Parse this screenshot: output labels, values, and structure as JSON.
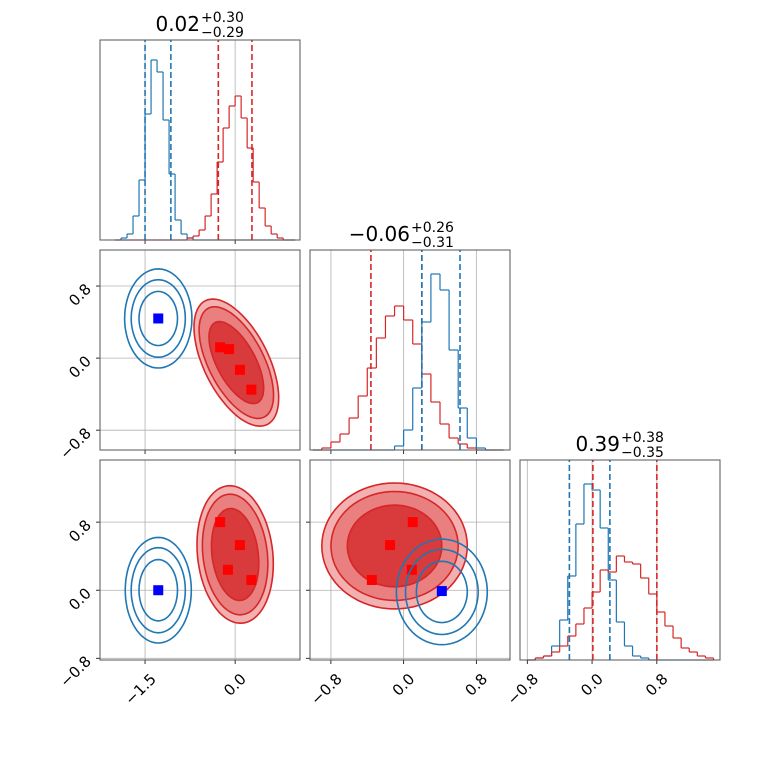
{
  "chart_data": [
    {
      "type": "histogram",
      "title": "0.02",
      "title_upper": "+0.30",
      "title_lower": "−0.29",
      "bins": [
        -2,
        -1.9,
        -1.8,
        -1.7,
        -1.6,
        -1.5,
        -1.4,
        -1.3,
        -1.2,
        -1.1,
        -1,
        -0.9,
        -0.8,
        -0.7,
        -0.6,
        -0.5,
        -0.4,
        -0.3,
        -0.2,
        -0.1,
        0,
        0.1,
        0.2,
        0.3,
        0.4,
        0.5,
        0.6,
        0.7,
        0.8,
        0.9,
        1
      ],
      "series": [
        {
          "color": "#1f77b4",
          "values": [
            0,
            1,
            3,
            12,
            30,
            63,
            90,
            84,
            60,
            33,
            10,
            3,
            1,
            0,
            0,
            0,
            0,
            0,
            0,
            0,
            0,
            0,
            0,
            0,
            0,
            0,
            0,
            0,
            0,
            0
          ],
          "quantiles": [
            -1.5,
            -1.07
          ]
        },
        {
          "color": "#d62728",
          "values": [
            0,
            0,
            0,
            0,
            0,
            0,
            0,
            0,
            0,
            0,
            0,
            0,
            1,
            2,
            5,
            12,
            23,
            39,
            56,
            67,
            72,
            61,
            46,
            29,
            16,
            7,
            3,
            1,
            0,
            0
          ],
          "quantiles": [
            -0.28,
            0.28
          ]
        }
      ],
      "xlim": [
        -2.25,
        1.08
      ],
      "xticks": [
        -1.5,
        0
      ],
      "xtick_labels": false,
      "ylim": [
        0,
        100
      ],
      "yticks": [],
      "ytick_labels": false,
      "grid": true
    },
    {
      "type": "contour",
      "series": [
        {
          "color": "#1f77b4",
          "point_color": "#0000ff",
          "contours": [
            {
              "x": -1.28,
              "y": 0.44,
              "rx": 0.56,
              "ry": 0.55,
              "angle": 0
            },
            {
              "x": -1.28,
              "y": 0.44,
              "rx": 0.45,
              "ry": 0.43,
              "angle": 0
            },
            {
              "x": -1.28,
              "y": 0.44,
              "rx": 0.32,
              "ry": 0.3,
              "angle": 0
            }
          ],
          "points": {
            "x": [
              -1.28
            ],
            "y": [
              0.44
            ]
          }
        },
        {
          "color": "#d62728",
          "point_color": "#ff0000",
          "contours": [
            {
              "x": 0.02,
              "y": -0.05,
              "rx": 0.88,
              "ry": 0.47,
              "angle": -45,
              "fill": "#f3b0b0"
            },
            {
              "x": 0.02,
              "y": -0.05,
              "rx": 0.78,
              "ry": 0.4,
              "angle": -45,
              "fill": "#ea7f80"
            },
            {
              "x": 0.02,
              "y": -0.05,
              "rx": 0.58,
              "ry": 0.28,
              "angle": -45,
              "fill": "#d93a3b"
            }
          ],
          "points": {
            "x": [
              -0.25,
              -0.1,
              0.08,
              0.27
            ],
            "y": [
              0.12,
              0.1,
              -0.13,
              -0.35
            ]
          }
        }
      ],
      "xlim": [
        -2.25,
        1.08
      ],
      "xticks": [
        -1.5,
        0
      ],
      "xtick_labels": false,
      "ylim": [
        -1.02,
        1.2
      ],
      "yticks": [
        {
          "value": -0.8,
          "label": "−0.8"
        },
        {
          "value": 0,
          "label": "0.0"
        },
        0.8
      ],
      "ytick_labels": true,
      "grid": true
    },
    {
      "type": "histogram",
      "title": "−0.06",
      "title_upper": "+0.26",
      "title_lower": "−0.31",
      "bins": [
        -1,
        -0.9,
        -0.8,
        -0.7,
        -0.6,
        -0.5,
        -0.4,
        -0.3,
        -0.2,
        -0.1,
        0,
        0.1,
        0.2,
        0.3,
        0.4,
        0.5,
        0.6,
        0.7,
        0.8,
        0.9,
        1,
        1.1
      ],
      "series": [
        {
          "color": "#d62728",
          "values": [
            0,
            1,
            4,
            8,
            16,
            27,
            41,
            56,
            67,
            72,
            65,
            53,
            38,
            24,
            13,
            6,
            3,
            1,
            0,
            0,
            0
          ],
          "quantiles": [
            -0.36,
            0.2
          ]
        },
        {
          "color": "#1f77b4",
          "values": [
            0,
            0,
            0,
            0,
            0,
            0,
            0,
            0,
            0,
            2,
            10,
            31,
            64,
            88,
            80,
            50,
            21,
            6,
            1,
            0,
            0
          ],
          "quantiles": [
            0.2,
            0.62
          ]
        }
      ],
      "xlim": [
        -1.03,
        1.17
      ],
      "xticks": [
        -0.8,
        0,
        0.8
      ],
      "xtick_labels": false,
      "ylim": [
        0,
        100
      ],
      "yticks": [],
      "ytick_labels": false,
      "grid": true
    },
    {
      "type": "contour",
      "series": [
        {
          "color": "#1f77b4",
          "point_color": "#0000ff",
          "contours": [
            {
              "x": -1.28,
              "y": 0,
              "rx": 0.55,
              "ry": 0.62,
              "angle": 0
            },
            {
              "x": -1.28,
              "y": 0,
              "rx": 0.45,
              "ry": 0.5,
              "angle": 0
            },
            {
              "x": -1.28,
              "y": 0,
              "rx": 0.32,
              "ry": 0.36,
              "angle": 0
            }
          ],
          "points": {
            "x": [
              -1.28
            ],
            "y": [
              0
            ]
          }
        },
        {
          "color": "#d62728",
          "point_color": "#ff0000",
          "contours": [
            {
              "x": 0,
              "y": 0.42,
              "rx": 0.82,
              "ry": 0.62,
              "angle": -75,
              "fill": "#f3b0b0"
            },
            {
              "x": 0,
              "y": 0.42,
              "rx": 0.72,
              "ry": 0.53,
              "angle": -75,
              "fill": "#ea7f80"
            },
            {
              "x": 0,
              "y": 0.42,
              "rx": 0.55,
              "ry": 0.38,
              "angle": -75,
              "fill": "#d93a3b"
            }
          ],
          "points": {
            "x": [
              -0.25,
              0.08,
              -0.12,
              0.27
            ],
            "y": [
              0.8,
              0.53,
              0.24,
              0.12
            ]
          }
        }
      ],
      "xlim": [
        -2.25,
        1.08
      ],
      "xticks": [
        {
          "value": -1.5,
          "label": "−1.5"
        },
        {
          "value": 0,
          "label": "0.0"
        }
      ],
      "xtick_labels": true,
      "ylim": [
        -0.82,
        1.53
      ],
      "yticks": [
        {
          "value": -0.8,
          "label": "−0.8"
        },
        {
          "value": 0,
          "label": "0.0"
        },
        0.8
      ],
      "ytick_labels": true,
      "grid": true
    },
    {
      "type": "contour",
      "series": [
        {
          "color": "#d62728",
          "point_color": "#ff0000",
          "contours": [
            {
              "x": -0.1,
              "y": 0.52,
              "rx": 0.8,
              "ry": 0.74,
              "angle": 0,
              "fill": "#f3b0b0"
            },
            {
              "x": -0.1,
              "y": 0.52,
              "rx": 0.7,
              "ry": 0.64,
              "angle": 0,
              "fill": "#ea7f80"
            },
            {
              "x": -0.1,
              "y": 0.52,
              "rx": 0.52,
              "ry": 0.48,
              "angle": 0,
              "fill": "#d93a3b"
            }
          ],
          "points": {
            "x": [
              -0.35,
              -0.15,
              0.1,
              0.09
            ],
            "y": [
              0.12,
              0.53,
              0.8,
              0.24
            ]
          }
        },
        {
          "color": "#1f77b4",
          "point_color": "#0000ff",
          "contours": [
            {
              "x": 0.42,
              "y": -0.02,
              "rx": 0.5,
              "ry": 0.62,
              "angle": 0
            },
            {
              "x": 0.42,
              "y": -0.02,
              "rx": 0.4,
              "ry": 0.5,
              "angle": 0
            },
            {
              "x": 0.42,
              "y": -0.02,
              "rx": 0.28,
              "ry": 0.36,
              "angle": 0
            }
          ],
          "points": {
            "x": [
              0.42
            ],
            "y": [
              -0.01
            ]
          }
        }
      ],
      "xlim": [
        -1.03,
        1.17
      ],
      "xticks": [
        {
          "value": -0.8,
          "label": "−0.8"
        },
        {
          "value": 0,
          "label": "0.0"
        },
        0.8
      ],
      "xtick_labels": true,
      "ylim": [
        -0.82,
        1.53
      ],
      "yticks": [
        -0.8,
        0,
        0.8
      ],
      "ytick_labels": false,
      "grid": true
    },
    {
      "type": "histogram",
      "title": "0.39",
      "title_upper": "+0.38",
      "title_lower": "−0.35",
      "bins": [
        -0.8,
        -0.7,
        -0.6,
        -0.5,
        -0.4,
        -0.3,
        -0.2,
        -0.1,
        0,
        0.1,
        0.2,
        0.3,
        0.4,
        0.5,
        0.6,
        0.7,
        0.8,
        0.9,
        1,
        1.1,
        1.2,
        1.3,
        1.4,
        1.5
      ],
      "series": [
        {
          "color": "#1f77b4",
          "values": [
            0,
            1,
            2,
            7,
            20,
            42,
            68,
            88,
            85,
            66,
            40,
            19,
            7,
            2,
            1,
            0,
            0,
            0,
            0,
            0,
            0,
            0,
            0
          ],
          "quantiles": [
            -0.28,
            0.22
          ]
        },
        {
          "color": "#d62728",
          "values": [
            0,
            1,
            2,
            4,
            7,
            12,
            18,
            26,
            34,
            45,
            44,
            52,
            49,
            48,
            41,
            33,
            24,
            17,
            11,
            6,
            4,
            2,
            1
          ],
          "quantiles": [
            0.01,
            0.8
          ]
        }
      ],
      "xlim": [
        -0.89,
        1.58
      ],
      "xticks": [
        {
          "value": -0.8,
          "label": "−0.8"
        },
        {
          "value": 0,
          "label": "0.0"
        },
        0.8
      ],
      "xtick_labels": true,
      "ylim": [
        0,
        100
      ],
      "yticks": [],
      "ytick_labels": false,
      "grid": true
    }
  ]
}
